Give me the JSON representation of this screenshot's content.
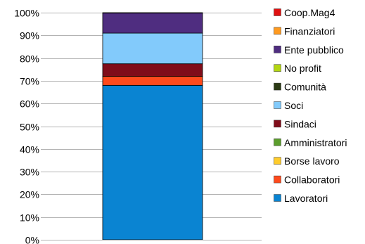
{
  "chart_data": {
    "type": "bar",
    "stacked": true,
    "ylim": [
      0,
      100
    ],
    "yticks": [
      "0%",
      "10%",
      "20%",
      "30%",
      "40%",
      "50%",
      "60%",
      "70%",
      "80%",
      "90%",
      "100%"
    ],
    "grid": true,
    "legend_position": "right",
    "categories": [
      ""
    ],
    "series": [
      {
        "name": "Lavoratori",
        "values": [
          68.0
        ],
        "color": "#0a84d2"
      },
      {
        "name": "Collaboratori",
        "values": [
          4.0
        ],
        "color": "#ff4a1c"
      },
      {
        "name": "Borse lavoro",
        "values": [
          0
        ],
        "color": "#ffcc2b"
      },
      {
        "name": "Amministratori",
        "values": [
          0
        ],
        "color": "#5c9e2d"
      },
      {
        "name": "Sindaci",
        "values": [
          5.5
        ],
        "color": "#800d1a"
      },
      {
        "name": "Soci",
        "values": [
          13.5
        ],
        "color": "#82cafb"
      },
      {
        "name": "Comunità",
        "values": [
          0
        ],
        "color": "#2b3a14"
      },
      {
        "name": "No profit",
        "values": [
          0
        ],
        "color": "#b3d612"
      },
      {
        "name": "Ente pubblico",
        "values": [
          8.8
        ],
        "color": "#4f2d80"
      },
      {
        "name": "Finanziatori",
        "values": [
          0
        ],
        "color": "#ff9a1f"
      },
      {
        "name": "Coop.Mag4",
        "values": [
          0.2
        ],
        "color": "#e01010"
      }
    ]
  }
}
